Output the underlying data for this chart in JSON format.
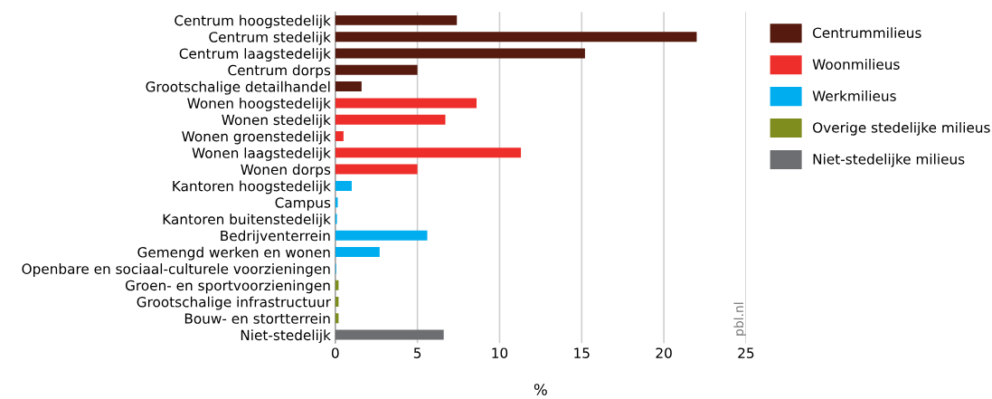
{
  "chart_data": {
    "type": "bar",
    "orientation": "horizontal",
    "stacked": true,
    "xlabel": "%",
    "categories": [
      "Centrum hoogstedelijk",
      "Centrum stedelijk",
      "Centrum laagstedelijk",
      "Centrum dorps",
      "Grootschalige detailhandel",
      "Wonen hoogstedelijk",
      "Wonen stedelijk",
      "Wonen groenstedelijk",
      "Wonen laagstedelijk",
      "Wonen dorps",
      "Kantoren hoogstedelijk",
      "Campus",
      "Kantoren buitenstedelijk",
      "Bedrijventerrein",
      "Gemengd werken en wonen",
      "Openbare en sociaal-culturele voorzieningen",
      "Groen- en sportvoorzieningen",
      "Grootschalige infrastructuur",
      "Bouw- en stortterrein",
      "Niet-stedelijk"
    ],
    "series": [
      {
        "name": "Centrummilieus",
        "color": "#561a0e",
        "values": [
          7.4,
          22.0,
          15.2,
          5.0,
          1.6,
          null,
          null,
          null,
          null,
          null,
          null,
          null,
          null,
          null,
          null,
          null,
          null,
          null,
          null,
          null
        ]
      },
      {
        "name": "Woonmilieus",
        "color": "#ee2e2a",
        "values": [
          null,
          null,
          null,
          null,
          null,
          8.6,
          6.7,
          0.5,
          11.3,
          5.0,
          null,
          null,
          null,
          null,
          null,
          null,
          null,
          null,
          null,
          null
        ]
      },
      {
        "name": "Werkmilieus",
        "color": "#00aeef",
        "values": [
          null,
          null,
          null,
          null,
          null,
          null,
          null,
          null,
          null,
          null,
          1.0,
          0.15,
          0.1,
          5.6,
          2.7,
          0.05,
          null,
          null,
          null,
          null
        ]
      },
      {
        "name": "Overige stedelijke milieus",
        "color": "#7f8c1e",
        "values": [
          null,
          null,
          null,
          null,
          null,
          null,
          null,
          null,
          null,
          null,
          null,
          null,
          null,
          null,
          null,
          null,
          0.2,
          0.2,
          0.2,
          null
        ]
      },
      {
        "name": "Niet-stedelijke milieus",
        "color": "#6d6e71",
        "values": [
          null,
          null,
          null,
          null,
          null,
          null,
          null,
          null,
          null,
          null,
          null,
          null,
          null,
          null,
          null,
          null,
          null,
          null,
          null,
          6.6
        ]
      }
    ],
    "xlim": [
      0,
      25
    ],
    "xticks": [
      0,
      5,
      10,
      15,
      20,
      25
    ],
    "grid": "x",
    "legend": "top right",
    "annotations": [
      "pbl.nl"
    ]
  }
}
